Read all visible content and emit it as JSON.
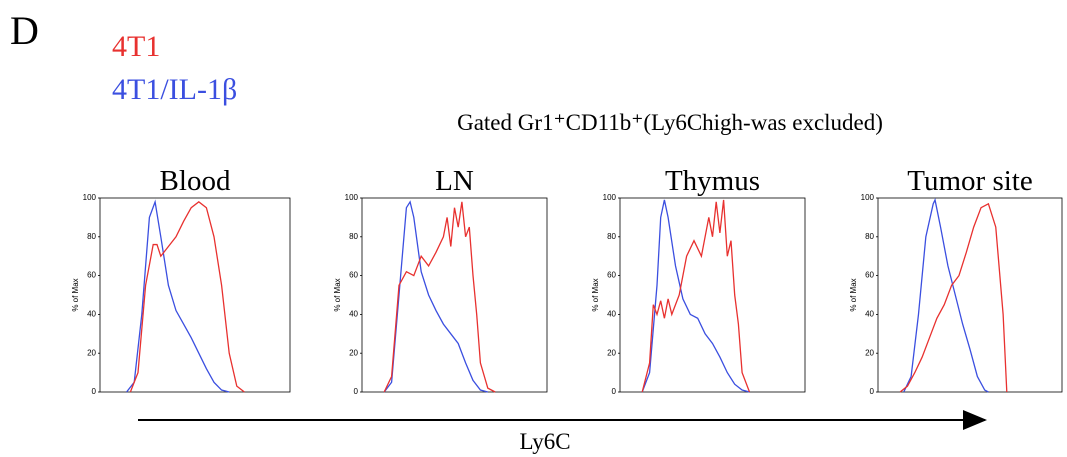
{
  "panel_label": "D",
  "title": "Gated Gr1⁺CD11b⁺(Ly6Chigh-was excluded)",
  "legend": [
    {
      "name": "4T1",
      "color": "#e8312f"
    },
    {
      "name": "4T1/IL-1β",
      "color": "#3b4fe0"
    }
  ],
  "xlabel": "Ly6C",
  "chart_data": [
    {
      "type": "line",
      "title": "Blood",
      "ylabel": "% of Max",
      "xlim": [
        0,
        5
      ],
      "ylim": [
        0,
        100
      ],
      "yticks": [
        0,
        20,
        40,
        60,
        80,
        100
      ],
      "series": [
        {
          "color": "#3b4fe0",
          "x": [
            0.7,
            0.9,
            1.1,
            1.3,
            1.45,
            1.6,
            1.8,
            2.0,
            2.2,
            2.4,
            2.6,
            2.8,
            3.0,
            3.2,
            3.4
          ],
          "values": [
            0,
            5,
            40,
            90,
            98,
            80,
            55,
            42,
            35,
            28,
            20,
            12,
            5,
            1,
            0
          ]
        },
        {
          "color": "#e8312f",
          "x": [
            0.8,
            1.0,
            1.2,
            1.4,
            1.5,
            1.6,
            1.8,
            2.0,
            2.2,
            2.4,
            2.6,
            2.8,
            3.0,
            3.2,
            3.4,
            3.6,
            3.8
          ],
          "values": [
            0,
            10,
            55,
            76,
            76,
            70,
            75,
            80,
            88,
            95,
            98,
            95,
            80,
            55,
            20,
            3,
            0
          ]
        }
      ]
    },
    {
      "type": "line",
      "title": "LN",
      "ylabel": "% of Max",
      "xlim": [
        0,
        5
      ],
      "ylim": [
        0,
        100
      ],
      "yticks": [
        0,
        20,
        40,
        60,
        80,
        100
      ],
      "series": [
        {
          "color": "#3b4fe0",
          "x": [
            0.6,
            0.8,
            1.0,
            1.2,
            1.3,
            1.4,
            1.6,
            1.8,
            2.0,
            2.2,
            2.4,
            2.6,
            2.8,
            3.0,
            3.2,
            3.4
          ],
          "values": [
            0,
            5,
            50,
            95,
            98,
            90,
            62,
            50,
            42,
            35,
            30,
            25,
            15,
            6,
            1,
            0
          ]
        },
        {
          "color": "#e8312f",
          "x": [
            0.6,
            0.8,
            1.0,
            1.2,
            1.4,
            1.6,
            1.8,
            2.0,
            2.2,
            2.3,
            2.4,
            2.5,
            2.6,
            2.7,
            2.8,
            2.9,
            3.0,
            3.1,
            3.2,
            3.4,
            3.6
          ],
          "values": [
            0,
            8,
            55,
            62,
            60,
            70,
            65,
            72,
            80,
            90,
            75,
            95,
            85,
            98,
            80,
            85,
            60,
            40,
            15,
            2,
            0
          ]
        }
      ]
    },
    {
      "type": "line",
      "title": "Thymus",
      "ylabel": "% of Max",
      "xlim": [
        0,
        5
      ],
      "ylim": [
        0,
        100
      ],
      "yticks": [
        0,
        20,
        40,
        60,
        80,
        100
      ],
      "series": [
        {
          "color": "#3b4fe0",
          "x": [
            0.6,
            0.8,
            1.0,
            1.1,
            1.2,
            1.3,
            1.5,
            1.7,
            1.9,
            2.1,
            2.3,
            2.5,
            2.7,
            2.9,
            3.1,
            3.3,
            3.5
          ],
          "values": [
            0,
            10,
            55,
            90,
            99,
            90,
            65,
            48,
            40,
            38,
            30,
            25,
            18,
            10,
            4,
            1,
            0
          ]
        },
        {
          "color": "#e8312f",
          "x": [
            0.6,
            0.8,
            0.9,
            1.0,
            1.1,
            1.2,
            1.3,
            1.4,
            1.6,
            1.8,
            2.0,
            2.2,
            2.4,
            2.5,
            2.6,
            2.7,
            2.8,
            2.9,
            3.0,
            3.1,
            3.2,
            3.3,
            3.5
          ],
          "values": [
            0,
            15,
            45,
            40,
            47,
            38,
            48,
            40,
            50,
            70,
            78,
            70,
            90,
            80,
            98,
            82,
            99,
            70,
            78,
            50,
            35,
            10,
            0
          ]
        }
      ]
    },
    {
      "type": "line",
      "title": "Tumor site",
      "ylabel": "% of Max",
      "xlim": [
        0,
        5
      ],
      "ylim": [
        0,
        100
      ],
      "yticks": [
        0,
        20,
        40,
        60,
        80,
        100
      ],
      "series": [
        {
          "color": "#3b4fe0",
          "x": [
            0.7,
            0.9,
            1.1,
            1.3,
            1.5,
            1.55,
            1.7,
            1.9,
            2.1,
            2.3,
            2.5,
            2.7,
            2.9,
            3.0
          ],
          "values": [
            0,
            8,
            40,
            80,
            97,
            99,
            85,
            65,
            50,
            35,
            22,
            8,
            1,
            0
          ]
        },
        {
          "color": "#e8312f",
          "x": [
            0.6,
            0.8,
            1.0,
            1.2,
            1.4,
            1.6,
            1.8,
            2.0,
            2.2,
            2.4,
            2.6,
            2.8,
            3.0,
            3.2,
            3.4,
            3.5
          ],
          "values": [
            0,
            3,
            10,
            18,
            28,
            38,
            45,
            55,
            60,
            72,
            85,
            95,
            97,
            85,
            40,
            0
          ]
        }
      ]
    }
  ]
}
